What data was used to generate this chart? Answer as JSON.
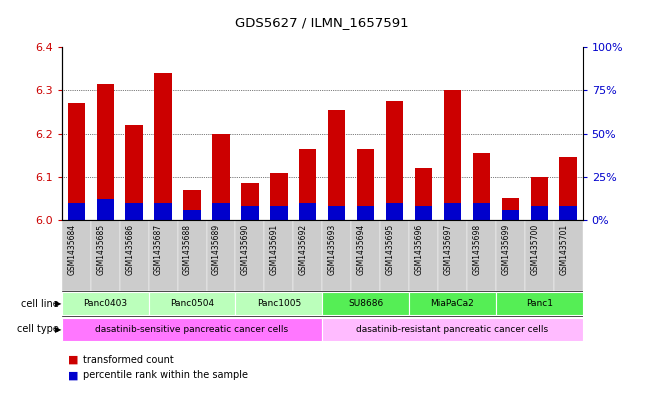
{
  "title": "GDS5627 / ILMN_1657591",
  "samples": [
    "GSM1435684",
    "GSM1435685",
    "GSM1435686",
    "GSM1435687",
    "GSM1435688",
    "GSM1435689",
    "GSM1435690",
    "GSM1435691",
    "GSM1435692",
    "GSM1435693",
    "GSM1435694",
    "GSM1435695",
    "GSM1435696",
    "GSM1435697",
    "GSM1435698",
    "GSM1435699",
    "GSM1435700",
    "GSM1435701"
  ],
  "red_values": [
    6.27,
    6.315,
    6.22,
    6.34,
    6.07,
    6.2,
    6.085,
    6.11,
    6.165,
    6.255,
    6.165,
    6.275,
    6.12,
    6.3,
    6.155,
    6.05,
    6.1,
    6.145
  ],
  "blue_percentiles": [
    10,
    12,
    10,
    10,
    6,
    10,
    8,
    8,
    10,
    8,
    8,
    10,
    8,
    10,
    10,
    6,
    8,
    8
  ],
  "ylim_left": [
    6.0,
    6.4
  ],
  "ylim_right": [
    0,
    100
  ],
  "yticks_left": [
    6.0,
    6.1,
    6.2,
    6.3,
    6.4
  ],
  "yticks_right": [
    0,
    25,
    50,
    75,
    100
  ],
  "ytick_labels_right": [
    "0%",
    "25%",
    "50%",
    "75%",
    "100%"
  ],
  "grid_values": [
    6.1,
    6.2,
    6.3
  ],
  "cell_lines": [
    {
      "label": "Panc0403",
      "start": 0,
      "end": 3,
      "color": "#bbffbb"
    },
    {
      "label": "Panc0504",
      "start": 3,
      "end": 6,
      "color": "#bbffbb"
    },
    {
      "label": "Panc1005",
      "start": 6,
      "end": 9,
      "color": "#bbffbb"
    },
    {
      "label": "SU8686",
      "start": 9,
      "end": 12,
      "color": "#55ee55"
    },
    {
      "label": "MiaPaCa2",
      "start": 12,
      "end": 15,
      "color": "#55ee55"
    },
    {
      "label": "Panc1",
      "start": 15,
      "end": 18,
      "color": "#55ee55"
    }
  ],
  "cell_types": [
    {
      "label": "dasatinib-sensitive pancreatic cancer cells",
      "start": 0,
      "end": 9,
      "color": "#ff77ff"
    },
    {
      "label": "dasatinib-resistant pancreatic cancer cells",
      "start": 9,
      "end": 18,
      "color": "#ffbbff"
    }
  ],
  "bar_color_red": "#cc0000",
  "bar_color_blue": "#0000cc",
  "bar_width": 0.6,
  "tick_color_left": "#cc0000",
  "tick_color_right": "#0000cc",
  "bg_color": "#ffffff",
  "grid_color": "#000000",
  "legend_red": "transformed count",
  "legend_blue": "percentile rank within the sample",
  "col_bg": "#cccccc"
}
